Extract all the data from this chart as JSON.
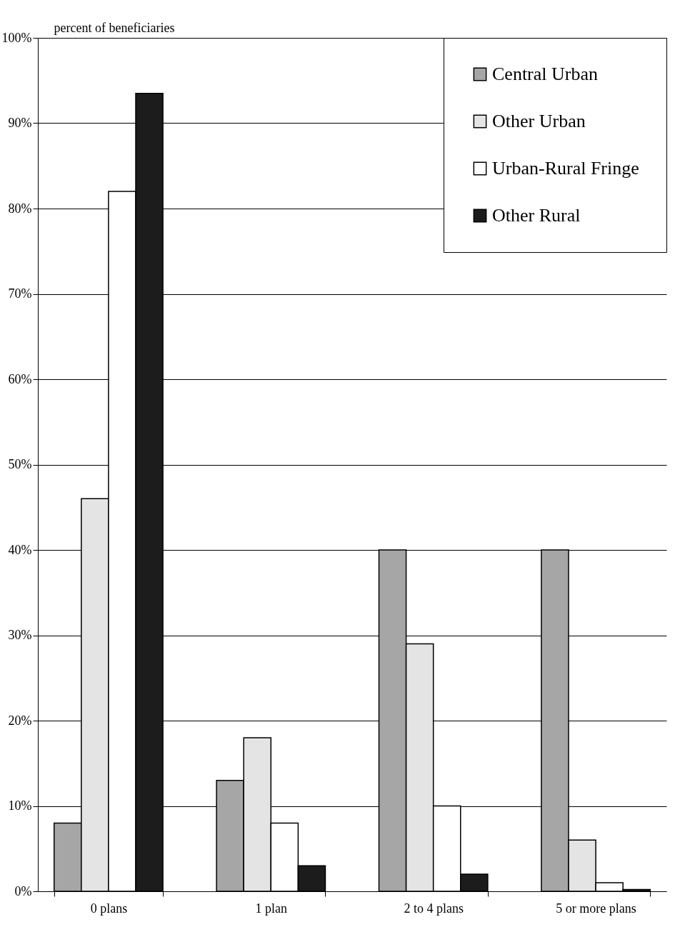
{
  "chart_data": {
    "type": "bar",
    "ylabel": "percent of beneficiaries",
    "categories": [
      "0 plans",
      "1 plan",
      "2 to 4 plans",
      "5 or more plans"
    ],
    "series": [
      {
        "name": "Central Urban",
        "color": "#a6a6a6",
        "values": [
          8,
          13,
          40,
          40
        ]
      },
      {
        "name": "Other Urban",
        "color": "#e4e4e4",
        "values": [
          46,
          18,
          29,
          6
        ]
      },
      {
        "name": "Urban-Rural Fringe",
        "color": "#ffffff",
        "values": [
          82,
          8,
          10,
          1
        ]
      },
      {
        "name": "Other Rural",
        "color": "#1c1c1c",
        "values": [
          93.5,
          3,
          2,
          0.2
        ]
      }
    ],
    "ylim": [
      0,
      100
    ],
    "yticks": [
      {
        "value": 0,
        "label": "0%"
      },
      {
        "value": 10,
        "label": "10%"
      },
      {
        "value": 20,
        "label": "20%"
      },
      {
        "value": 30,
        "label": "30%"
      },
      {
        "value": 40,
        "label": "40%"
      },
      {
        "value": 50,
        "label": "50%"
      },
      {
        "value": 60,
        "label": "60%"
      },
      {
        "value": 70,
        "label": "70%"
      },
      {
        "value": 80,
        "label": "80%"
      },
      {
        "value": 90,
        "label": "90%"
      },
      {
        "value": 100,
        "label": "100%"
      }
    ],
    "grid": "y",
    "legend": "top right"
  }
}
